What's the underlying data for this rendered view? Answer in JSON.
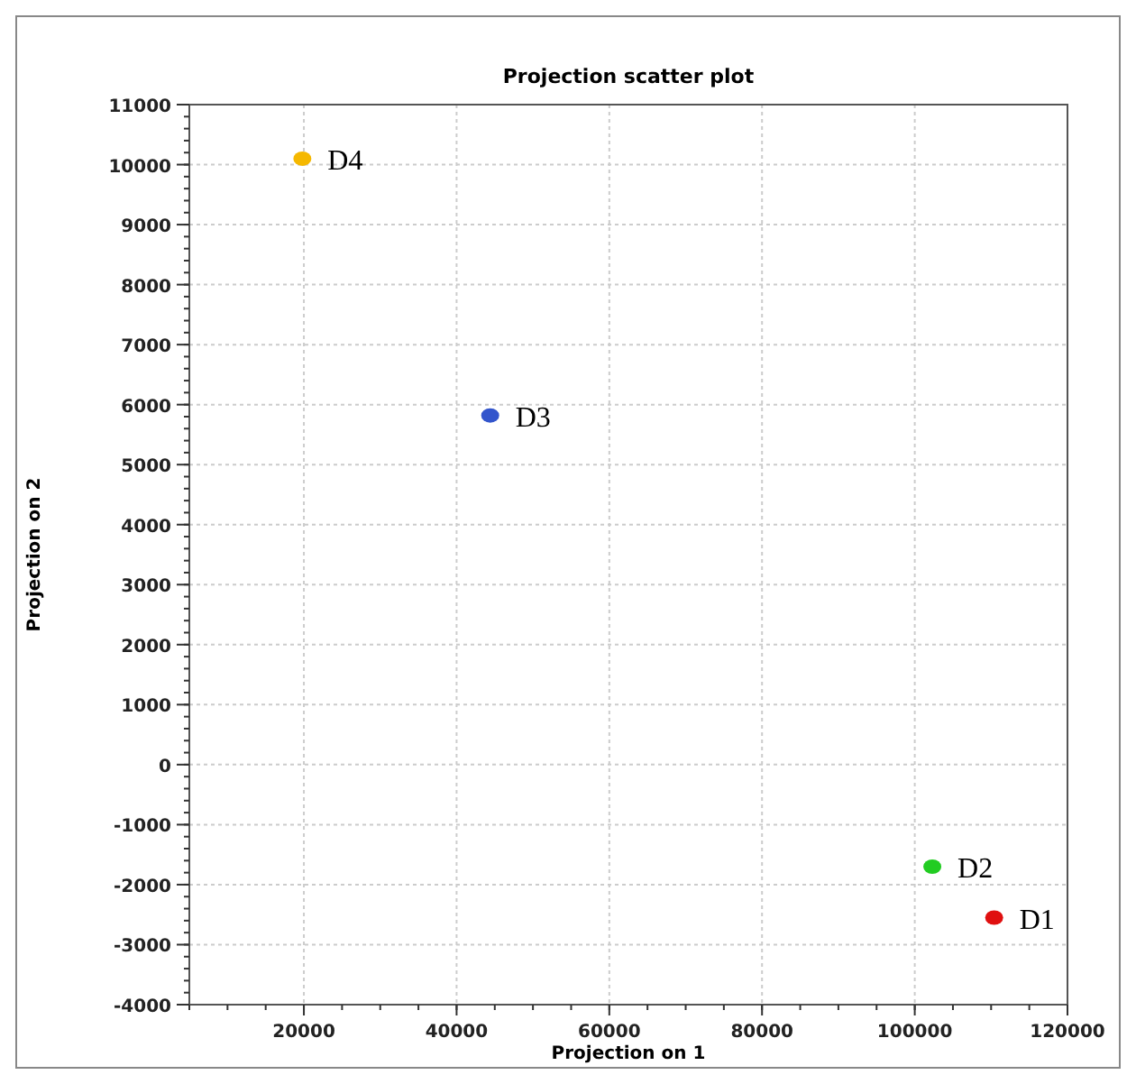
{
  "chart_data": {
    "type": "scatter",
    "title": "Projection scatter plot",
    "xlabel": "Projection on 1",
    "ylabel": "Projection on 2",
    "xlim": [
      5000,
      120000
    ],
    "xticks": [
      20000,
      40000,
      60000,
      80000,
      100000,
      120000
    ],
    "ylim": [
      -4000,
      11000
    ],
    "yticks": [
      -4000,
      -3000,
      -2000,
      -1000,
      0,
      1000,
      2000,
      3000,
      4000,
      5000,
      6000,
      7000,
      8000,
      9000,
      10000,
      11000
    ],
    "grid": true,
    "marker": "circle",
    "series": [
      {
        "name": "D1",
        "color": "#e01010",
        "x": [
          110400
        ],
        "values": [
          -2550
        ]
      },
      {
        "name": "D2",
        "color": "#22cc22",
        "x": [
          102300
        ],
        "values": [
          -1700
        ]
      },
      {
        "name": "D3",
        "color": "#3355cc",
        "x": [
          44400
        ],
        "values": [
          5820
        ]
      },
      {
        "name": "D4",
        "color": "#f5b800",
        "x": [
          19800
        ],
        "values": [
          10100
        ]
      }
    ]
  }
}
